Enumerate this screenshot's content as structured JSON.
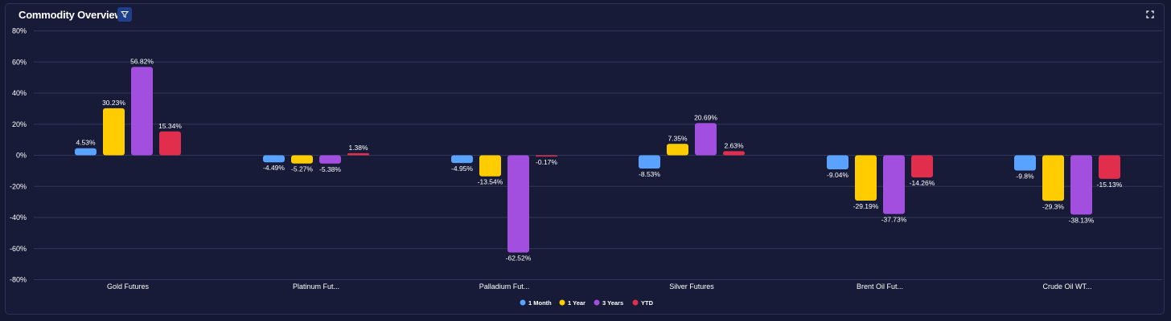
{
  "widget": {
    "title": "Commodity Overview"
  },
  "colors": {
    "one_month": "#5aa2ff",
    "one_year": "#ffcc00",
    "three_years": "#a24fe0",
    "ytd": "#e02e4c",
    "grid": "#313759",
    "text": "#ffffff"
  },
  "chart_data": {
    "type": "bar",
    "title": "Commodity Overview",
    "categories": [
      "Gold Futures",
      "Platinum Fut...",
      "Palladium Fut...",
      "Silver Futures",
      "Brent Oil Fut...",
      "Crude Oil WT..."
    ],
    "series": [
      {
        "name": "1 Month",
        "values": [
          4.53,
          -4.49,
          -4.95,
          -8.53,
          -9.04,
          -9.8
        ],
        "labels": [
          "4.53%",
          "-4.49%",
          "-4.95%",
          "-8.53%",
          "-9.04%",
          "-9.8%"
        ]
      },
      {
        "name": "1 Year",
        "values": [
          30.23,
          -5.27,
          -13.54,
          7.35,
          -29.19,
          -29.3
        ],
        "labels": [
          "30.23%",
          "-5.27%",
          "-13.54%",
          "7.35%",
          "-29.19%",
          "-29.3%"
        ]
      },
      {
        "name": "3 Years",
        "values": [
          56.82,
          -5.38,
          -62.52,
          20.69,
          -37.73,
          -38.13
        ],
        "labels": [
          "56.82%",
          "-5.38%",
          "-62.52%",
          "20.69%",
          "-37.73%",
          "-38.13%"
        ]
      },
      {
        "name": "YTD",
        "values": [
          15.34,
          1.38,
          -0.17,
          2.63,
          -14.26,
          -15.13
        ],
        "labels": [
          "15.34%",
          "1.38%",
          "-0.17%",
          "2.63%",
          "-14.26%",
          "-15.13%"
        ]
      }
    ],
    "yticks": [
      80,
      60,
      40,
      20,
      0,
      -20,
      -40,
      -60,
      -80
    ],
    "ytick_labels": [
      "80%",
      "60%",
      "40%",
      "20%",
      "0%",
      "-20%",
      "-40%",
      "-60%",
      "-80%"
    ],
    "ylim": [
      -80,
      80
    ],
    "grid": true,
    "legend": "bottom-center",
    "xlabel": "",
    "ylabel": ""
  }
}
